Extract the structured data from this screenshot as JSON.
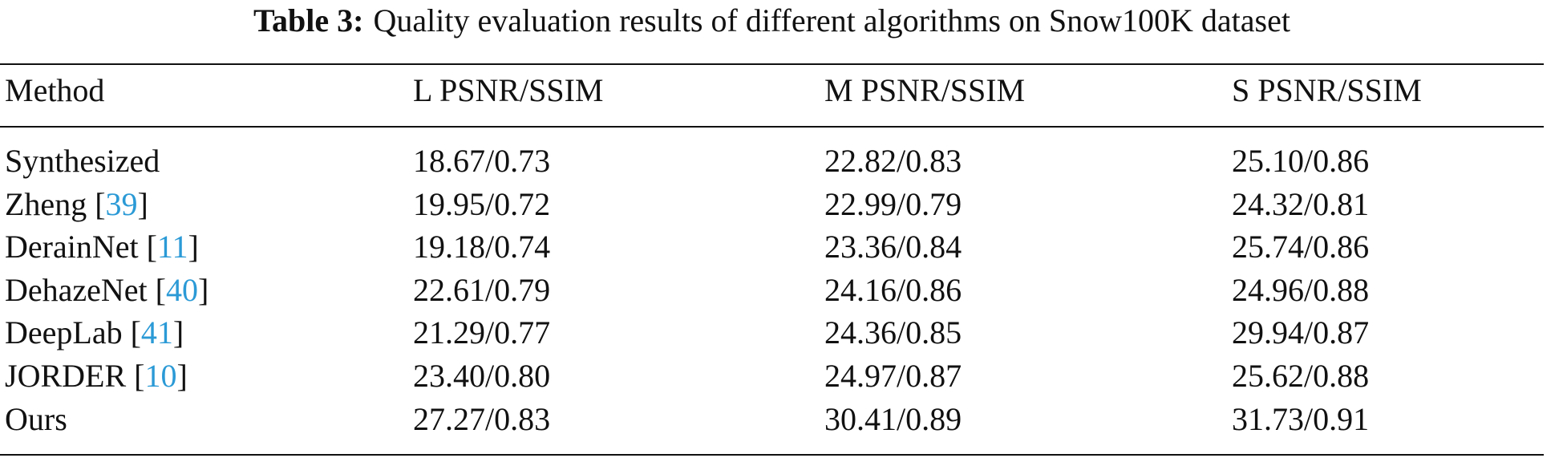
{
  "caption": {
    "label": "Table 3:",
    "text": "Quality evaluation results of different algorithms on Snow100K dataset"
  },
  "table": {
    "header": [
      "Method",
      "L PSNR/SSIM",
      "M PSNR/SSIM",
      "S PSNR/SSIM"
    ],
    "rows": [
      {
        "method": "Synthesized",
        "ref": null,
        "values": [
          "18.67/0.73",
          "22.82/0.83",
          "25.10/0.86"
        ]
      },
      {
        "method": "Zheng",
        "ref": [
          "[",
          "39",
          "]"
        ],
        "values": [
          "19.95/0.72",
          "22.99/0.79",
          "24.32/0.81"
        ]
      },
      {
        "method": "DerainNet",
        "ref": [
          "[",
          "11",
          "]"
        ],
        "values": [
          "19.18/0.74",
          "23.36/0.84",
          "25.74/0.86"
        ]
      },
      {
        "method": "DehazeNet",
        "ref": [
          "[",
          "40",
          "]"
        ],
        "values": [
          "22.61/0.79",
          "24.16/0.86",
          "24.96/0.88"
        ]
      },
      {
        "method": "DeepLab",
        "ref": [
          "[",
          "41",
          "]"
        ],
        "values": [
          "21.29/0.77",
          "24.36/0.85",
          "29.94/0.87"
        ]
      },
      {
        "method": "JORDER",
        "ref": [
          "[",
          "10",
          "]"
        ],
        "values": [
          "23.40/0.80",
          "24.97/0.87",
          "25.62/0.88"
        ]
      },
      {
        "method": "Ours",
        "ref": null,
        "values": [
          "27.27/0.83",
          "30.41/0.89",
          "31.73/0.91"
        ]
      }
    ]
  }
}
